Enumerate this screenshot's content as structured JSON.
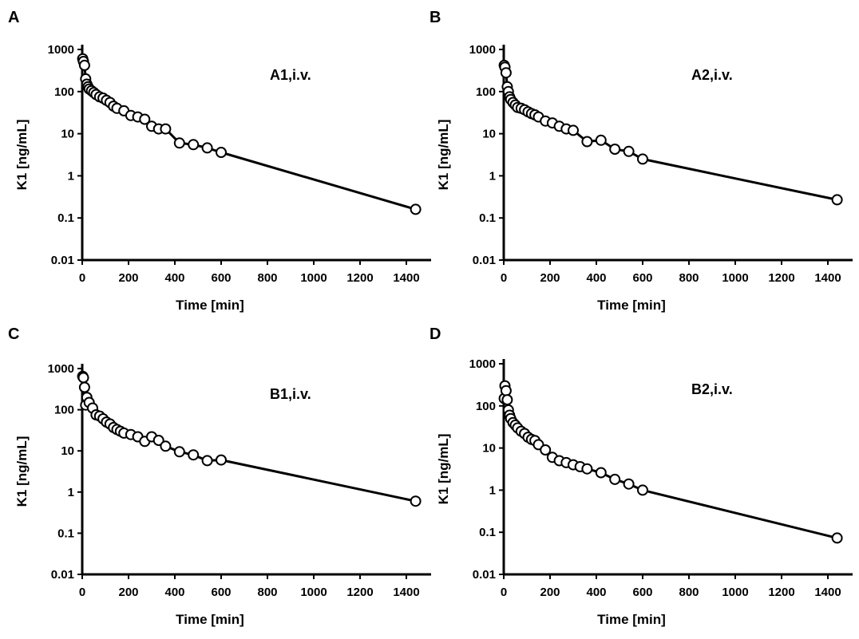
{
  "chart_data": [
    {
      "type": "line",
      "panel": "A",
      "title": "A1,i.v.",
      "xlabel": "Time [min]",
      "ylabel": "K1 [ng/mL]",
      "xlim": [
        0,
        1500
      ],
      "ylim": [
        0.01,
        1000
      ],
      "yscale": "log",
      "grid": false,
      "xticks": [
        "0",
        "200",
        "400",
        "600",
        "800",
        "1000",
        "1200",
        "1400"
      ],
      "yticks": [
        "0.01",
        "0.1",
        "1",
        "10",
        "100",
        "1000"
      ],
      "x": [
        2,
        5,
        10,
        15,
        20,
        25,
        30,
        40,
        50,
        60,
        75,
        90,
        105,
        120,
        135,
        150,
        180,
        210,
        240,
        270,
        300,
        330,
        360,
        420,
        480,
        540,
        600,
        1440
      ],
      "y": [
        600,
        520,
        420,
        200,
        150,
        130,
        115,
        105,
        95,
        85,
        75,
        70,
        62,
        55,
        45,
        40,
        35,
        27,
        25,
        22,
        15,
        13,
        13,
        6,
        5.5,
        4.6,
        3.6,
        0.16
      ]
    },
    {
      "type": "line",
      "panel": "B",
      "title": "A2,i.v.",
      "xlabel": "Time [min]",
      "ylabel": "K1 [ng/mL]",
      "xlim": [
        0,
        1500
      ],
      "ylim": [
        0.01,
        1000
      ],
      "yscale": "log",
      "grid": false,
      "xticks": [
        "0",
        "200",
        "400",
        "600",
        "800",
        "1000",
        "1200",
        "1400"
      ],
      "yticks": [
        "0.01",
        "0.1",
        "1",
        "10",
        "100",
        "1000"
      ],
      "x": [
        2,
        5,
        10,
        15,
        20,
        25,
        30,
        40,
        50,
        60,
        75,
        90,
        105,
        120,
        135,
        150,
        180,
        210,
        240,
        270,
        300,
        360,
        420,
        480,
        540,
        600,
        1440
      ],
      "y": [
        420,
        380,
        280,
        130,
        100,
        75,
        65,
        55,
        48,
        42,
        40,
        37,
        33,
        30,
        28,
        25,
        20,
        18,
        15,
        13,
        12,
        6.5,
        7,
        4.3,
        3.8,
        2.5,
        0.27
      ]
    },
    {
      "type": "line",
      "panel": "C",
      "title": "B1,i.v.",
      "xlabel": "Time [min]",
      "ylabel": "K1 [ng/mL]",
      "xlim": [
        0,
        1500
      ],
      "ylim": [
        0.01,
        1000
      ],
      "yscale": "log",
      "grid": false,
      "xticks": [
        "0",
        "200",
        "400",
        "600",
        "800",
        "1000",
        "1200",
        "1400"
      ],
      "yticks": [
        "0.01",
        "0.1",
        "1",
        "10",
        "100",
        "1000"
      ],
      "x": [
        2,
        5,
        10,
        15,
        20,
        30,
        45,
        60,
        75,
        90,
        105,
        120,
        135,
        150,
        165,
        180,
        210,
        240,
        270,
        300,
        330,
        360,
        420,
        480,
        540,
        600,
        1440
      ],
      "y": [
        650,
        600,
        350,
        130,
        200,
        150,
        110,
        75,
        70,
        60,
        50,
        45,
        37,
        33,
        30,
        27,
        25,
        22,
        17,
        22,
        18,
        13,
        9.5,
        8,
        5.8,
        6,
        0.6
      ]
    },
    {
      "type": "line",
      "panel": "D",
      "title": "B2,i.v.",
      "xlabel": "Time [min]",
      "ylabel": "K1 [ng/mL]",
      "xlim": [
        0,
        1500
      ],
      "ylim": [
        0.01,
        1000
      ],
      "yscale": "log",
      "grid": false,
      "xticks": [
        "0",
        "200",
        "400",
        "600",
        "800",
        "1000",
        "1200",
        "1400"
      ],
      "yticks": [
        "0.01",
        "0.1",
        "1",
        "10",
        "100",
        "1000"
      ],
      "x": [
        2,
        5,
        10,
        15,
        20,
        25,
        30,
        40,
        50,
        60,
        75,
        90,
        105,
        120,
        135,
        150,
        180,
        210,
        240,
        270,
        300,
        330,
        360,
        420,
        480,
        540,
        600,
        1440
      ],
      "y": [
        150,
        300,
        230,
        140,
        80,
        60,
        50,
        40,
        35,
        30,
        25,
        22,
        18,
        16,
        15,
        12,
        9,
        6,
        5,
        4.5,
        4,
        3.6,
        3.2,
        2.6,
        1.8,
        1.4,
        1.0,
        0.073
      ]
    }
  ]
}
